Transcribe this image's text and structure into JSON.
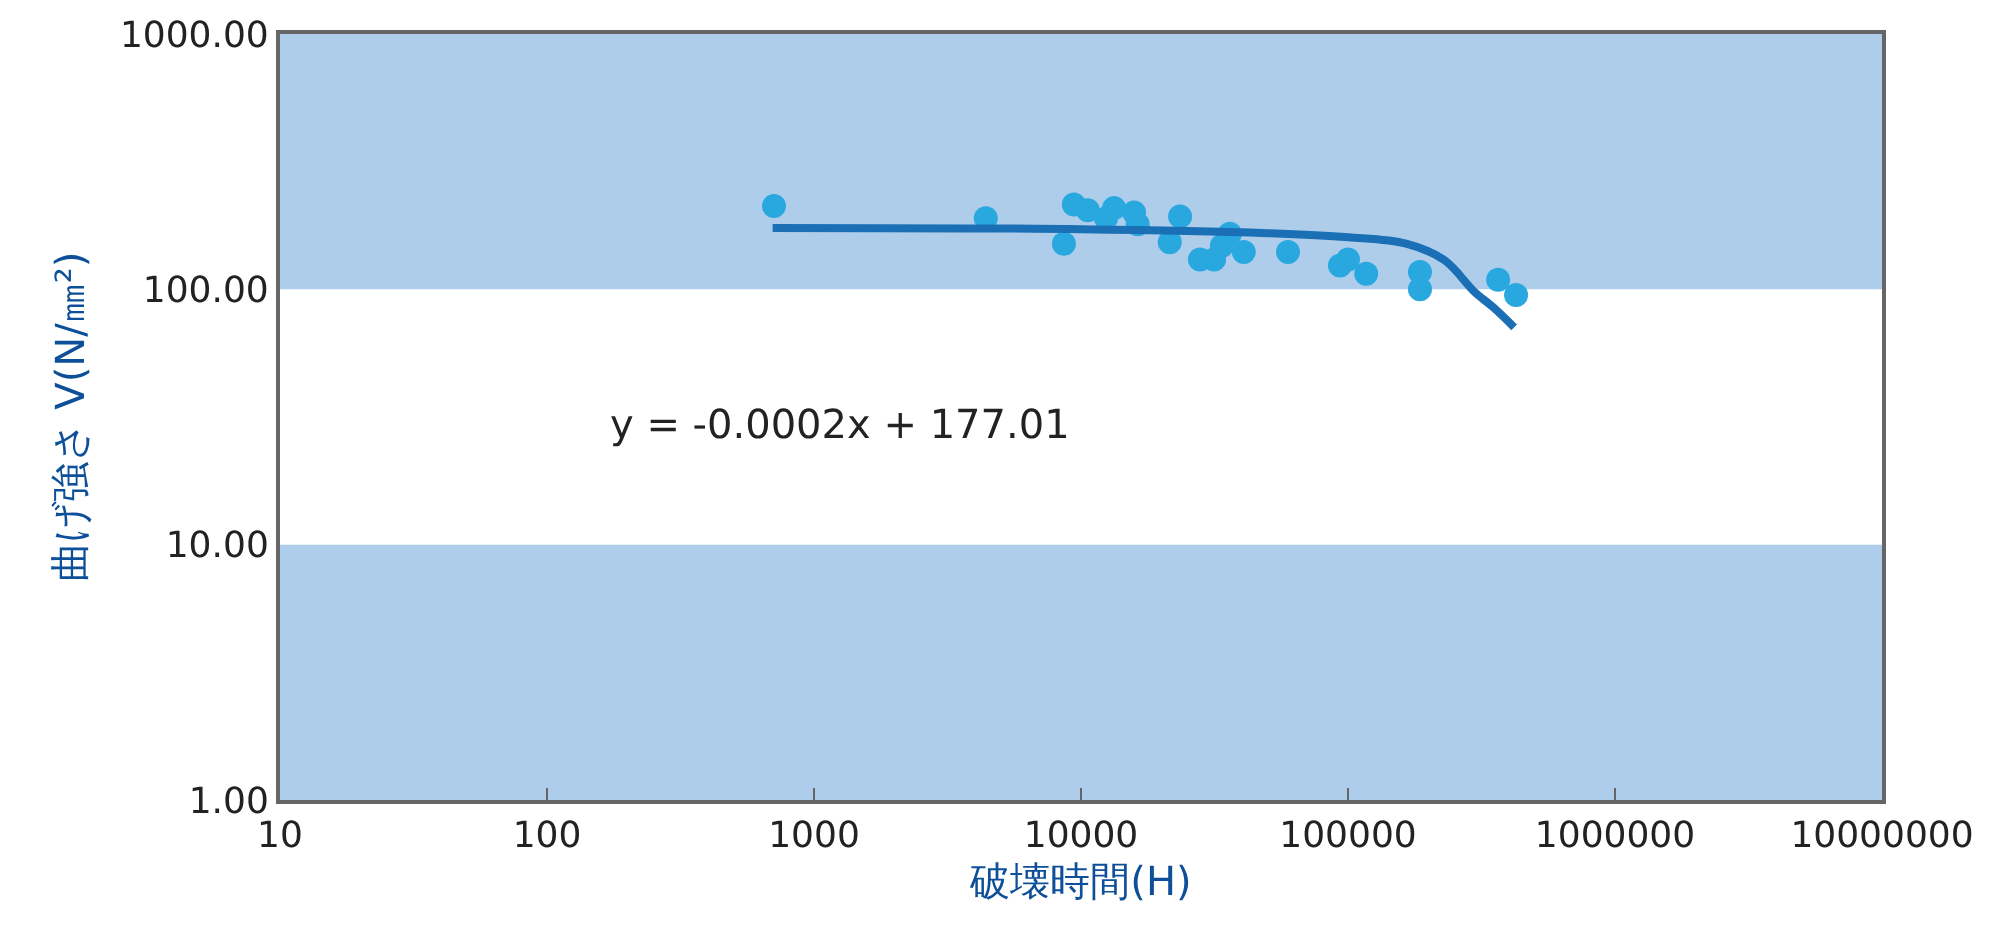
{
  "chart_data": {
    "type": "scatter",
    "xlabel": "破壊時間(H)",
    "ylabel": "曲げ強さ V(N/㎜²)",
    "log": "xy",
    "grid": false,
    "marker": "circle",
    "xlim": [
      10,
      10000000
    ],
    "xticks": [
      10,
      100,
      1000,
      10000,
      100000,
      1000000,
      10000000
    ],
    "ylim": [
      1,
      1000
    ],
    "yticks": [
      {
        "value": 1,
        "label": "1.00"
      },
      {
        "value": 10,
        "label": "10.00"
      },
      {
        "value": 100,
        "label": "100.00"
      },
      {
        "value": 1000,
        "label": "1000.00"
      }
    ],
    "bands": [
      {
        "axis": "y",
        "from": 100,
        "to": 1000,
        "color": "#aecdea"
      },
      {
        "axis": "y",
        "from": 1,
        "to": 10,
        "color": "#aecdea"
      }
    ],
    "annotations": [
      "y = -0.0002x + 177.01"
    ],
    "series": [
      {
        "color": "#29a8e0",
        "x": [
          708,
          4400,
          9400,
          10600,
          8630,
          12400,
          13300,
          15800,
          16300,
          23500,
          21500,
          27900,
          31500,
          33700,
          36100,
          40700,
          59600,
          93300,
          100000,
          117000,
          186000,
          186000,
          365000,
          426000
        ],
        "values": [
          212,
          190,
          215,
          204,
          151,
          190,
          208,
          200,
          180,
          193,
          153,
          131,
          131,
          148,
          165,
          140,
          140,
          124,
          131,
          115,
          117,
          100,
          109,
          95
        ]
      },
      {
        "type": "line",
        "color": "#1a6fb5",
        "line_style": "solid",
        "marker": "none",
        "x": [
          700,
          10000,
          50000,
          100000,
          165000,
          230000,
          297000,
          350000,
          419000
        ],
        "values": [
          174,
          172,
          166,
          160,
          151,
          130,
          98,
          85,
          71
        ]
      }
    ]
  }
}
